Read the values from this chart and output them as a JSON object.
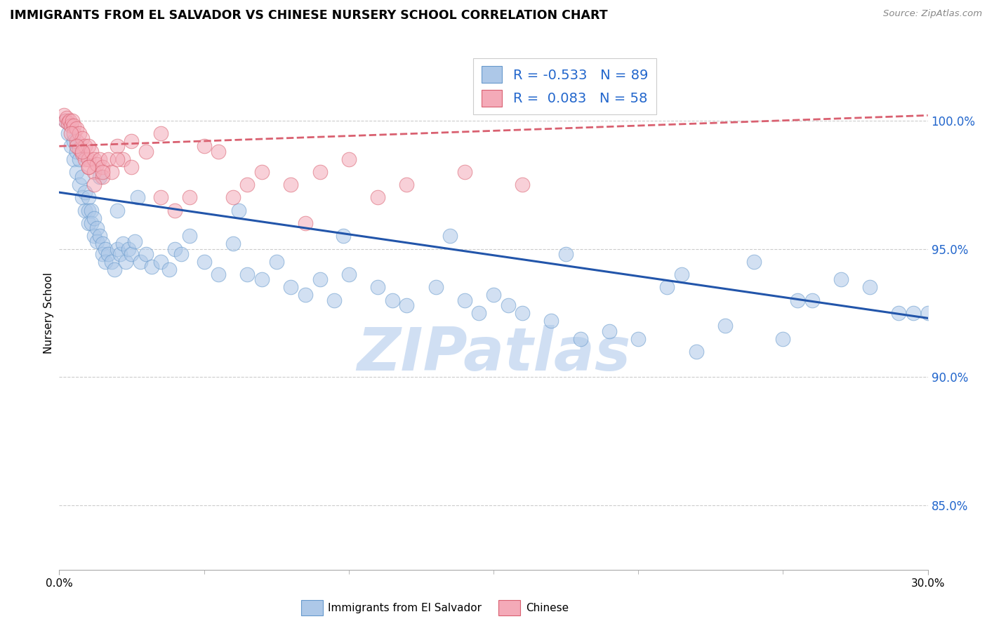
{
  "title": "IMMIGRANTS FROM EL SALVADOR VS CHINESE NURSERY SCHOOL CORRELATION CHART",
  "source": "Source: ZipAtlas.com",
  "ylabel": "Nursery School",
  "xmin": 0.0,
  "xmax": 30.0,
  "ymin": 82.5,
  "ymax": 102.5,
  "yticks": [
    85.0,
    90.0,
    95.0,
    100.0
  ],
  "ytick_labels": [
    "85.0%",
    "90.0%",
    "95.0%",
    "100.0%"
  ],
  "blue_R": -0.533,
  "blue_N": 89,
  "pink_R": 0.083,
  "pink_N": 58,
  "blue_color": "#adc8e8",
  "blue_edge_color": "#6699cc",
  "pink_color": "#f4aab8",
  "pink_edge_color": "#d96070",
  "blue_line_color": "#2255aa",
  "pink_line_color": "#d96070",
  "watermark_text": "ZIPatlas",
  "watermark_color": "#c8daf2",
  "legend_blue_label": "R = -0.533   N = 89",
  "legend_pink_label": "R =  0.083   N = 58",
  "bottom_legend_blue": "Immigrants from El Salvador",
  "bottom_legend_pink": "Chinese",
  "blue_x": [
    0.2,
    0.3,
    0.4,
    0.5,
    0.5,
    0.6,
    0.6,
    0.7,
    0.7,
    0.8,
    0.8,
    0.9,
    0.9,
    1.0,
    1.0,
    1.0,
    1.1,
    1.1,
    1.2,
    1.2,
    1.3,
    1.3,
    1.4,
    1.5,
    1.5,
    1.6,
    1.6,
    1.7,
    1.8,
    1.9,
    2.0,
    2.0,
    2.1,
    2.2,
    2.3,
    2.4,
    2.5,
    2.6,
    2.8,
    3.0,
    3.2,
    3.5,
    3.8,
    4.0,
    4.2,
    4.5,
    5.0,
    5.5,
    6.0,
    6.5,
    7.0,
    7.5,
    8.0,
    8.5,
    9.0,
    9.5,
    10.0,
    11.0,
    11.5,
    12.0,
    13.0,
    14.0,
    14.5,
    15.0,
    15.5,
    16.0,
    17.0,
    18.0,
    19.0,
    20.0,
    21.0,
    22.0,
    23.0,
    24.0,
    25.0,
    26.0,
    27.0,
    28.0,
    29.0,
    30.0,
    1.4,
    2.7,
    6.2,
    9.8,
    13.5,
    17.5,
    21.5,
    25.5,
    29.5
  ],
  "blue_y": [
    100.0,
    99.5,
    99.0,
    99.2,
    98.5,
    98.8,
    98.0,
    98.5,
    97.5,
    97.8,
    97.0,
    97.2,
    96.5,
    97.0,
    96.5,
    96.0,
    96.5,
    96.0,
    96.2,
    95.5,
    95.8,
    95.3,
    95.5,
    95.2,
    94.8,
    95.0,
    94.5,
    94.8,
    94.5,
    94.2,
    96.5,
    95.0,
    94.8,
    95.2,
    94.5,
    95.0,
    94.8,
    95.3,
    94.5,
    94.8,
    94.3,
    94.5,
    94.2,
    95.0,
    94.8,
    95.5,
    94.5,
    94.0,
    95.2,
    94.0,
    93.8,
    94.5,
    93.5,
    93.2,
    93.8,
    93.0,
    94.0,
    93.5,
    93.0,
    92.8,
    93.5,
    93.0,
    92.5,
    93.2,
    92.8,
    92.5,
    92.2,
    91.5,
    91.8,
    91.5,
    93.5,
    91.0,
    92.0,
    94.5,
    91.5,
    93.0,
    93.8,
    93.5,
    92.5,
    92.5,
    97.8,
    97.0,
    96.5,
    95.5,
    95.5,
    94.8,
    94.0,
    93.0,
    92.5
  ],
  "pink_x": [
    0.15,
    0.2,
    0.25,
    0.3,
    0.35,
    0.4,
    0.45,
    0.5,
    0.5,
    0.6,
    0.6,
    0.7,
    0.7,
    0.8,
    0.8,
    0.9,
    0.9,
    1.0,
    1.0,
    1.0,
    1.1,
    1.2,
    1.2,
    1.3,
    1.4,
    1.5,
    1.5,
    1.7,
    1.8,
    2.0,
    2.2,
    2.5,
    3.0,
    3.5,
    4.0,
    5.0,
    5.5,
    6.0,
    7.0,
    8.0,
    9.0,
    10.0,
    11.0,
    12.0,
    14.0,
    16.0,
    0.4,
    0.6,
    0.8,
    1.0,
    1.2,
    1.5,
    2.0,
    2.5,
    3.5,
    6.5,
    4.5,
    8.5
  ],
  "pink_y": [
    100.2,
    100.0,
    100.1,
    99.9,
    100.0,
    99.8,
    100.0,
    99.8,
    99.5,
    99.7,
    99.2,
    99.5,
    98.9,
    99.3,
    98.7,
    99.0,
    98.5,
    99.0,
    98.5,
    98.2,
    98.8,
    98.5,
    98.0,
    98.3,
    98.5,
    98.2,
    97.8,
    98.5,
    98.0,
    99.0,
    98.5,
    99.2,
    98.8,
    99.5,
    96.5,
    99.0,
    98.8,
    97.0,
    98.0,
    97.5,
    98.0,
    98.5,
    97.0,
    97.5,
    98.0,
    97.5,
    99.5,
    99.0,
    98.8,
    98.2,
    97.5,
    98.0,
    98.5,
    98.2,
    97.0,
    97.5,
    97.0,
    96.0
  ]
}
